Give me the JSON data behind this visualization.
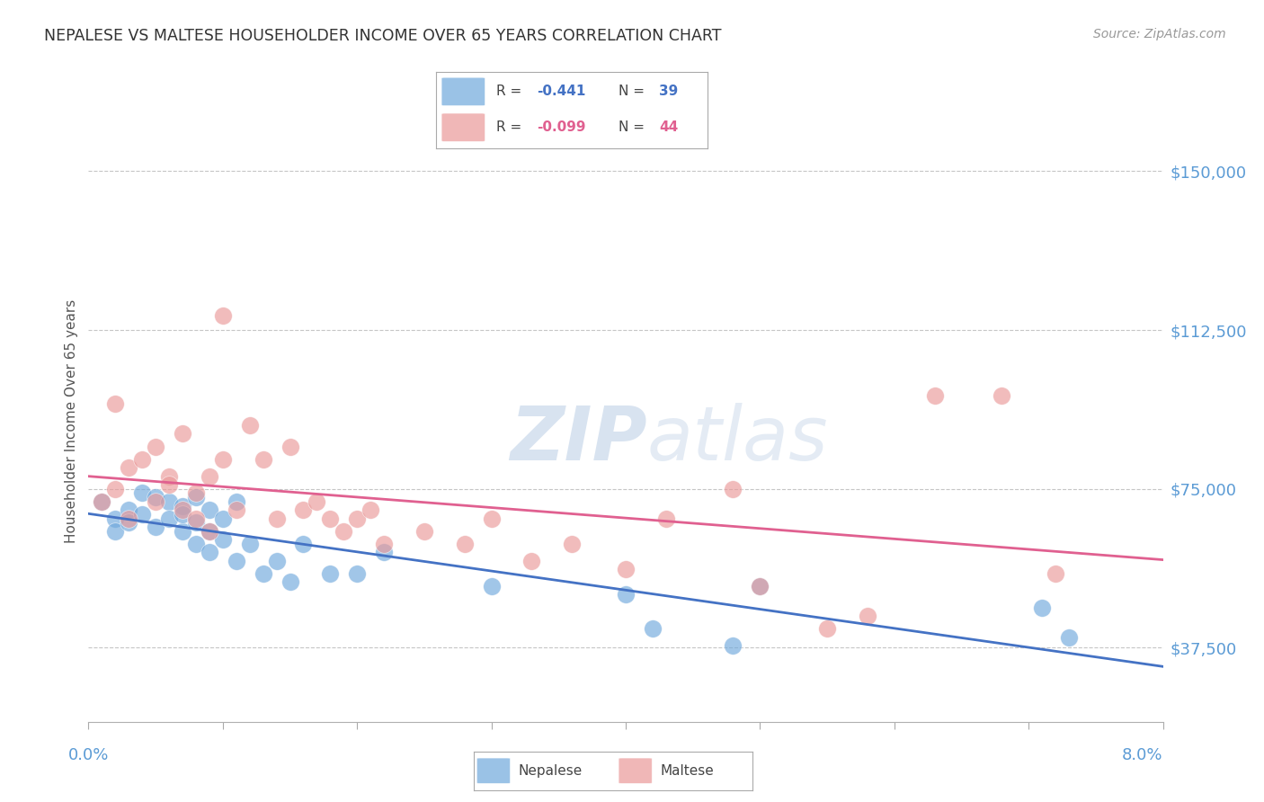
{
  "title": "NEPALESE VS MALTESE HOUSEHOLDER INCOME OVER 65 YEARS CORRELATION CHART",
  "source": "Source: ZipAtlas.com",
  "ylabel": "Householder Income Over 65 years",
  "y_ticks": [
    37500,
    75000,
    112500,
    150000
  ],
  "y_tick_labels": [
    "$37,500",
    "$75,000",
    "$112,500",
    "$150,000"
  ],
  "xlim": [
    0.0,
    0.08
  ],
  "ylim": [
    20000,
    162000
  ],
  "nepalese_R": "-0.441",
  "nepalese_N": "39",
  "maltese_R": "-0.099",
  "maltese_N": "44",
  "nepalese_color": "#6fa8dc",
  "maltese_color": "#ea9999",
  "nepalese_line_color": "#4472c4",
  "maltese_line_color": "#e06090",
  "background_color": "#ffffff",
  "nepalese_x": [
    0.001,
    0.002,
    0.002,
    0.003,
    0.003,
    0.004,
    0.004,
    0.005,
    0.005,
    0.006,
    0.006,
    0.007,
    0.007,
    0.007,
    0.008,
    0.008,
    0.008,
    0.009,
    0.009,
    0.009,
    0.01,
    0.01,
    0.011,
    0.011,
    0.012,
    0.013,
    0.014,
    0.015,
    0.016,
    0.018,
    0.02,
    0.022,
    0.03,
    0.04,
    0.042,
    0.048,
    0.05,
    0.071,
    0.073
  ],
  "nepalese_y": [
    72000,
    68000,
    65000,
    70000,
    67000,
    74000,
    69000,
    73000,
    66000,
    72000,
    68000,
    71000,
    65000,
    69000,
    73000,
    67000,
    62000,
    70000,
    65000,
    60000,
    68000,
    63000,
    72000,
    58000,
    62000,
    55000,
    58000,
    53000,
    62000,
    55000,
    55000,
    60000,
    52000,
    50000,
    42000,
    38000,
    52000,
    47000,
    40000
  ],
  "maltese_x": [
    0.001,
    0.002,
    0.002,
    0.003,
    0.003,
    0.004,
    0.005,
    0.005,
    0.006,
    0.006,
    0.007,
    0.007,
    0.008,
    0.008,
    0.009,
    0.009,
    0.01,
    0.01,
    0.011,
    0.012,
    0.013,
    0.014,
    0.015,
    0.016,
    0.017,
    0.018,
    0.019,
    0.02,
    0.021,
    0.022,
    0.025,
    0.028,
    0.03,
    0.033,
    0.036,
    0.04,
    0.043,
    0.048,
    0.05,
    0.055,
    0.058,
    0.063,
    0.068,
    0.072
  ],
  "maltese_y": [
    72000,
    95000,
    75000,
    80000,
    68000,
    82000,
    85000,
    72000,
    78000,
    76000,
    70000,
    88000,
    74000,
    68000,
    78000,
    65000,
    82000,
    116000,
    70000,
    90000,
    82000,
    68000,
    85000,
    70000,
    72000,
    68000,
    65000,
    68000,
    70000,
    62000,
    65000,
    62000,
    68000,
    58000,
    62000,
    56000,
    68000,
    75000,
    52000,
    42000,
    45000,
    97000,
    97000,
    55000
  ]
}
